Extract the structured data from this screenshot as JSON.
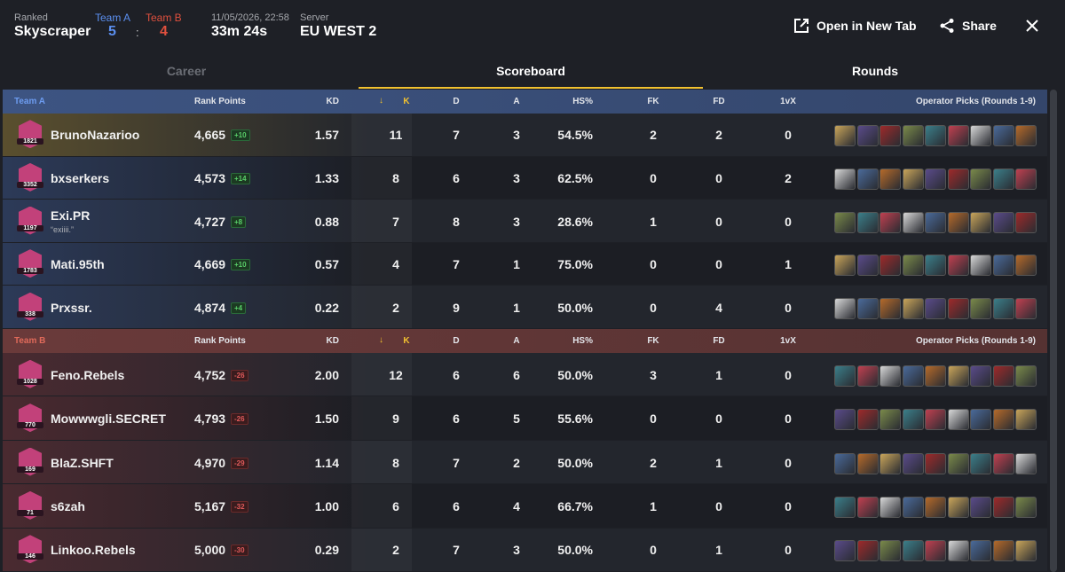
{
  "header": {
    "mode": "Ranked",
    "map": "Skyscraper",
    "team_a": "Team A",
    "team_a_score": "5",
    "separator": ":",
    "team_b": "Team B",
    "team_b_score": "4",
    "datetime": "11/05/2026, 22:58",
    "duration": "33m 24s",
    "server_label": "Server",
    "server": "EU WEST 2",
    "open_tab": "Open in New Tab",
    "share": "Share"
  },
  "tabs": [
    "Career",
    "Scoreboard",
    "Rounds"
  ],
  "teams": [
    {
      "name": "Team A",
      "columns": [
        "Rank Points",
        "KD",
        "K",
        "D",
        "A",
        "HS%",
        "FK",
        "FD",
        "1vX",
        "Operator Picks (Rounds 1-9)"
      ],
      "players": [
        {
          "rank": "1821",
          "name": "BrunoNazarioo",
          "rank_points": "4,665",
          "delta": "+10",
          "kd": "1.57",
          "k": "11",
          "d": "7",
          "a": "3",
          "hs": "54.5%",
          "fk": "2",
          "fd": "2",
          "onevx": "0"
        },
        {
          "rank": "3352",
          "name": "bxserkers",
          "rank_points": "4,573",
          "delta": "+14",
          "kd": "1.33",
          "k": "8",
          "d": "6",
          "a": "3",
          "hs": "62.5%",
          "fk": "0",
          "fd": "0",
          "onevx": "2"
        },
        {
          "rank": "1197",
          "name": "Exi.PR",
          "subtitle": "“exiiii.”",
          "rank_points": "4,727",
          "delta": "+8",
          "kd": "0.88",
          "k": "7",
          "d": "8",
          "a": "3",
          "hs": "28.6%",
          "fk": "1",
          "fd": "0",
          "onevx": "0"
        },
        {
          "rank": "1783",
          "name": "Mati.95th",
          "rank_points": "4,669",
          "delta": "+10",
          "kd": "0.57",
          "k": "4",
          "d": "7",
          "a": "1",
          "hs": "75.0%",
          "fk": "0",
          "fd": "0",
          "onevx": "1"
        },
        {
          "rank": "338",
          "name": "Prxssr.",
          "rank_points": "4,874",
          "delta": "+4",
          "kd": "0.22",
          "k": "2",
          "d": "9",
          "a": "1",
          "hs": "50.0%",
          "fk": "0",
          "fd": "4",
          "onevx": "0"
        }
      ]
    },
    {
      "name": "Team B",
      "columns": [
        "Rank Points",
        "KD",
        "K",
        "D",
        "A",
        "HS%",
        "FK",
        "FD",
        "1vX",
        "Operator Picks (Rounds 1-9)"
      ],
      "players": [
        {
          "rank": "1028",
          "name": "Feno.Rebels",
          "rank_points": "4,752",
          "delta": "-26",
          "kd": "2.00",
          "k": "12",
          "d": "6",
          "a": "6",
          "hs": "50.0%",
          "fk": "3",
          "fd": "1",
          "onevx": "0"
        },
        {
          "rank": "770",
          "name": "Mowwwgli.SECRET",
          "rank_points": "4,793",
          "delta": "-26",
          "kd": "1.50",
          "k": "9",
          "d": "6",
          "a": "5",
          "hs": "55.6%",
          "fk": "0",
          "fd": "0",
          "onevx": "0"
        },
        {
          "rank": "169",
          "name": "BlaZ.SHFT",
          "rank_points": "4,970",
          "delta": "-29",
          "kd": "1.14",
          "k": "8",
          "d": "7",
          "a": "2",
          "hs": "50.0%",
          "fk": "2",
          "fd": "1",
          "onevx": "0"
        },
        {
          "rank": "71",
          "name": "s6zah",
          "rank_points": "5,167",
          "delta": "-32",
          "kd": "1.00",
          "k": "6",
          "d": "6",
          "a": "4",
          "hs": "66.7%",
          "fk": "1",
          "fd": "0",
          "onevx": "0"
        },
        {
          "rank": "146",
          "name": "Linkoo.Rebels",
          "rank_points": "5,000",
          "delta": "-30",
          "kd": "0.29",
          "k": "2",
          "d": "7",
          "a": "3",
          "hs": "50.0%",
          "fk": "0",
          "fd": "1",
          "onevx": "0"
        }
      ]
    }
  ]
}
